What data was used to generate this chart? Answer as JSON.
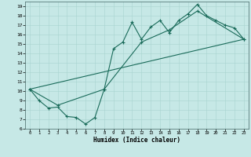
{
  "bg_color": "#c6e8e6",
  "line_color": "#1a6b5a",
  "xlabel": "Humidex (Indice chaleur)",
  "xlim": [
    -0.5,
    23.5
  ],
  "ylim": [
    6,
    19.5
  ],
  "yticks": [
    6,
    7,
    8,
    9,
    10,
    11,
    12,
    13,
    14,
    15,
    16,
    17,
    18,
    19
  ],
  "xticks": [
    0,
    1,
    2,
    3,
    4,
    5,
    6,
    7,
    8,
    9,
    10,
    11,
    12,
    13,
    14,
    15,
    16,
    17,
    18,
    19,
    20,
    21,
    22,
    23
  ],
  "series1_x": [
    0,
    1,
    2,
    3,
    4,
    5,
    6,
    7,
    8,
    9,
    10,
    11,
    12,
    13,
    14,
    15,
    16,
    17,
    18,
    19,
    20,
    21,
    22,
    23
  ],
  "series1_y": [
    10.2,
    9.0,
    8.2,
    8.3,
    7.3,
    7.2,
    6.5,
    7.2,
    10.2,
    14.5,
    15.2,
    17.3,
    15.5,
    16.8,
    17.5,
    16.2,
    17.5,
    18.2,
    19.2,
    18.0,
    17.5,
    17.0,
    16.7,
    15.5
  ],
  "series2_x": [
    0,
    3,
    8,
    12,
    15,
    18,
    23
  ],
  "series2_y": [
    10.2,
    8.5,
    10.2,
    15.2,
    16.5,
    18.5,
    15.5
  ],
  "series3_x": [
    0,
    23
  ],
  "series3_y": [
    10.2,
    15.5
  ]
}
